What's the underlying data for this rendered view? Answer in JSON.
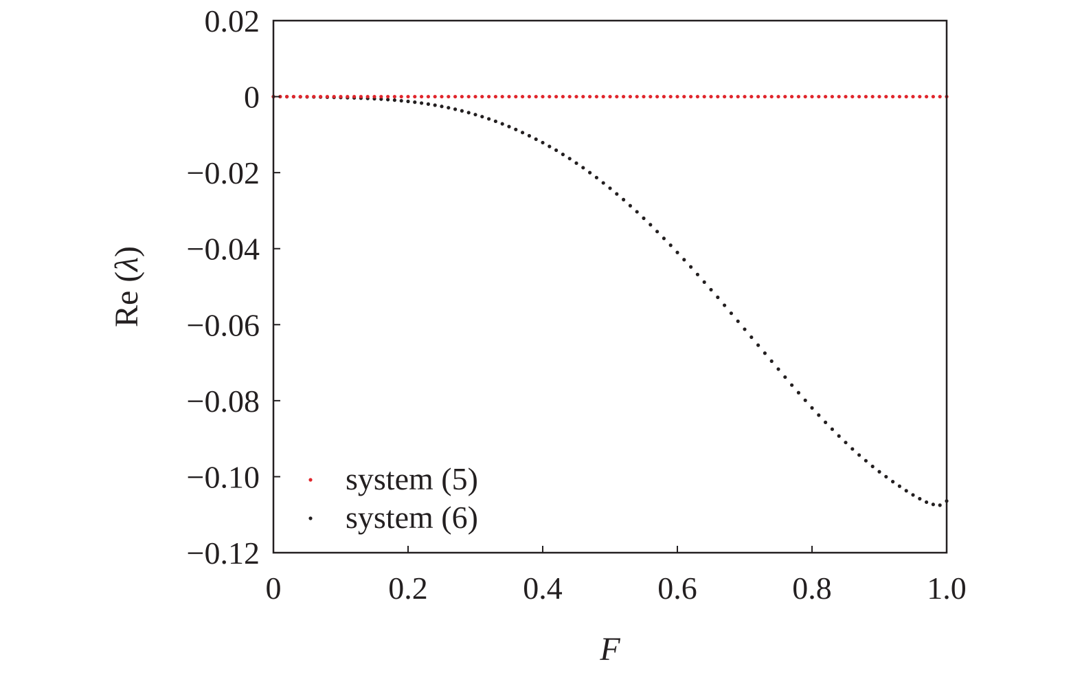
{
  "chart_data": {
    "type": "scatter",
    "xlabel": "F",
    "ylabel_prefix": "Re (",
    "ylabel_symbol": "λ",
    "ylabel_suffix": ")",
    "xlim": [
      0,
      1.0
    ],
    "ylim": [
      -0.12,
      0.02
    ],
    "x_ticks": [
      {
        "value": 0,
        "label": "0"
      },
      {
        "value": 0.2,
        "label": "0.2"
      },
      {
        "value": 0.4,
        "label": "0.4"
      },
      {
        "value": 0.6,
        "label": "0.6"
      },
      {
        "value": 0.8,
        "label": "0.8"
      },
      {
        "value": 1.0,
        "label": "1.0"
      }
    ],
    "y_ticks": [
      {
        "value": 0.02,
        "label": "0.02"
      },
      {
        "value": 0,
        "label": "0"
      },
      {
        "value": -0.02,
        "label": "−0.02"
      },
      {
        "value": -0.04,
        "label": "−0.04"
      },
      {
        "value": -0.06,
        "label": "−0.06"
      },
      {
        "value": -0.08,
        "label": "−0.08"
      },
      {
        "value": -0.1,
        "label": "−0.10"
      },
      {
        "value": -0.12,
        "label": "−0.12"
      }
    ],
    "grid": false,
    "legend_position": "bottom-left",
    "series": [
      {
        "name": "system (5)",
        "color": "#e0262c",
        "x": [
          0.0,
          0.01,
          0.02,
          0.03,
          0.04,
          0.05,
          0.06,
          0.07,
          0.08,
          0.09,
          0.1,
          0.11,
          0.12,
          0.13,
          0.14,
          0.15,
          0.16,
          0.17,
          0.18,
          0.19,
          0.2,
          0.21,
          0.22,
          0.23,
          0.24,
          0.25,
          0.26,
          0.27,
          0.28,
          0.29,
          0.3,
          0.31,
          0.32,
          0.33,
          0.34,
          0.35,
          0.36,
          0.37,
          0.38,
          0.39,
          0.4,
          0.41,
          0.42,
          0.43,
          0.44,
          0.45,
          0.46,
          0.47,
          0.48,
          0.49,
          0.5,
          0.51,
          0.52,
          0.53,
          0.54,
          0.55,
          0.56,
          0.57,
          0.58,
          0.59,
          0.6,
          0.61,
          0.62,
          0.63,
          0.64,
          0.65,
          0.66,
          0.67,
          0.68,
          0.69,
          0.7,
          0.71,
          0.72,
          0.73,
          0.74,
          0.75,
          0.76,
          0.77,
          0.78,
          0.79,
          0.8,
          0.81,
          0.82,
          0.83,
          0.84,
          0.85,
          0.86,
          0.87,
          0.88,
          0.89,
          0.9,
          0.91,
          0.92,
          0.93,
          0.94,
          0.95,
          0.96,
          0.97,
          0.98,
          0.99,
          1.0
        ],
        "y": [
          0,
          0,
          0,
          0,
          0,
          0,
          0,
          0,
          0,
          0,
          0,
          0,
          0,
          0,
          0,
          0,
          0,
          0,
          0,
          0,
          0,
          0,
          0,
          0,
          0,
          0,
          0,
          0,
          0,
          0,
          0,
          0,
          0,
          0,
          0,
          0,
          0,
          0,
          0,
          0,
          0,
          0,
          0,
          0,
          0,
          0,
          0,
          0,
          0,
          0,
          0,
          0,
          0,
          0,
          0,
          0,
          0,
          0,
          0,
          0,
          0,
          0,
          0,
          0,
          0,
          0,
          0,
          0,
          0,
          0,
          0,
          0,
          0,
          0,
          0,
          0,
          0,
          0,
          0,
          0,
          0,
          0,
          0,
          0,
          0,
          0,
          0,
          0,
          0,
          0,
          0,
          0,
          0,
          0,
          0,
          0,
          0,
          0,
          0,
          0,
          0
        ]
      },
      {
        "name": "system (6)",
        "color": "#231f20",
        "x": [
          0.0,
          0.01,
          0.02,
          0.03,
          0.04,
          0.05,
          0.06,
          0.07,
          0.08,
          0.09,
          0.1,
          0.11,
          0.12,
          0.13,
          0.14,
          0.15,
          0.16,
          0.17,
          0.18,
          0.19,
          0.2,
          0.21,
          0.22,
          0.23,
          0.24,
          0.25,
          0.26,
          0.27,
          0.28,
          0.29,
          0.3,
          0.31,
          0.32,
          0.33,
          0.34,
          0.35,
          0.36,
          0.37,
          0.38,
          0.39,
          0.4,
          0.41,
          0.42,
          0.43,
          0.44,
          0.45,
          0.46,
          0.47,
          0.48,
          0.49,
          0.5,
          0.51,
          0.52,
          0.53,
          0.54,
          0.55,
          0.56,
          0.57,
          0.58,
          0.59,
          0.6,
          0.61,
          0.62,
          0.63,
          0.64,
          0.65,
          0.66,
          0.67,
          0.68,
          0.69,
          0.7,
          0.71,
          0.72,
          0.73,
          0.74,
          0.75,
          0.76,
          0.77,
          0.78,
          0.79,
          0.8,
          0.81,
          0.82,
          0.83,
          0.84,
          0.85,
          0.86,
          0.87,
          0.88,
          0.89,
          0.9,
          0.91,
          0.92,
          0.93,
          0.94,
          0.95,
          0.96,
          0.97,
          0.98,
          0.99,
          1.0
        ],
        "y": [
          0,
          0,
          -1e-05,
          -2e-05,
          -4e-05,
          -6e-05,
          -8e-05,
          -0.00011,
          -0.00015,
          -0.00019,
          -0.00023,
          -0.00028,
          -0.00034,
          -0.0004,
          -0.00047,
          -0.00056,
          -0.00066,
          -0.00078,
          -0.00092,
          -0.00108,
          -0.00125,
          -0.00146,
          -0.00169,
          -0.00196,
          -0.00225,
          -0.00257,
          -0.00292,
          -0.00331,
          -0.00374,
          -0.00421,
          -0.00472,
          -0.00527,
          -0.00586,
          -0.00649,
          -0.00716,
          -0.00788,
          -0.00864,
          -0.00945,
          -0.0103,
          -0.0112,
          -0.0121,
          -0.0131,
          -0.0141,
          -0.0152,
          -0.0163,
          -0.0175,
          -0.0187,
          -0.02,
          -0.0213,
          -0.0227,
          -0.0241,
          -0.0256,
          -0.0271,
          -0.0287,
          -0.0303,
          -0.032,
          -0.0337,
          -0.0355,
          -0.0373,
          -0.0391,
          -0.041,
          -0.0429,
          -0.0448,
          -0.0468,
          -0.0488,
          -0.0508,
          -0.0528,
          -0.0549,
          -0.057,
          -0.0591,
          -0.0612,
          -0.0633,
          -0.0654,
          -0.0675,
          -0.0696,
          -0.0717,
          -0.0738,
          -0.0759,
          -0.0779,
          -0.0799,
          -0.0819,
          -0.0838,
          -0.0857,
          -0.0875,
          -0.0893,
          -0.091,
          -0.0927,
          -0.0943,
          -0.0958,
          -0.0973,
          -0.0987,
          -0.1,
          -0.1013,
          -0.1025,
          -0.1037,
          -0.1048,
          -0.1058,
          -0.1067,
          -0.1073,
          -0.1075,
          -0.1064
        ]
      }
    ]
  }
}
